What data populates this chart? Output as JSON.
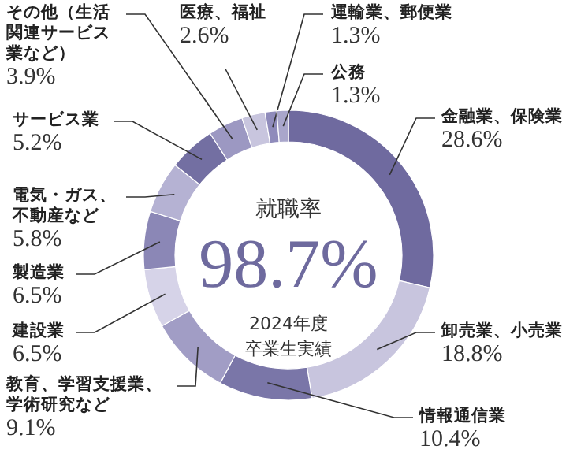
{
  "chart_data": {
    "type": "donut",
    "categories": [
      "金融業、保険業",
      "卸売業、小売業",
      "情報通信業",
      "教育、学習支援業、学術研究など",
      "建設業",
      "製造業",
      "電気・ガス、不動産など",
      "サービス業",
      "その他（生活関連サービス業など）",
      "医療、福祉",
      "運輸業、郵便業",
      "公務"
    ],
    "values": [
      28.6,
      18.8,
      10.4,
      9.1,
      6.5,
      6.5,
      5.8,
      5.2,
      3.9,
      2.6,
      1.3,
      1.3
    ],
    "value_labels": [
      "28.6%",
      "18.8%",
      "10.4%",
      "9.1%",
      "6.5%",
      "6.5%",
      "5.8%",
      "5.2%",
      "3.9%",
      "2.6%",
      "1.3%",
      "1.3%"
    ],
    "colors": [
      "#6f6a9f",
      "#c8c5de",
      "#7a76a8",
      "#a19dc5",
      "#d6d3e8",
      "#8b87b6",
      "#b5b2d3",
      "#736fa2",
      "#9c98c2",
      "#c8c5de",
      "#8f8bbb",
      "#a9a6cb"
    ],
    "annotations": [
      "就職率",
      "98.7%",
      "2024年度",
      "卒業生実績"
    ]
  }
}
